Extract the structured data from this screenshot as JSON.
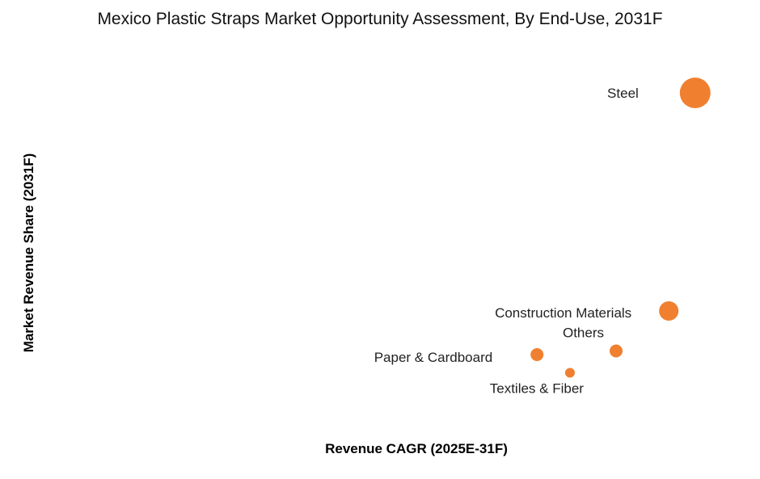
{
  "chart_data": {
    "type": "scatter",
    "title": "Mexico Plastic Straps Market Opportunity Assessment, By End-Use, 2031F",
    "xlabel": "Revenue CAGR (2025E-31F)",
    "ylabel": "Market Revenue Share (2031F)",
    "grid": false,
    "legend": "none",
    "marker_color": "#f08030",
    "xlim": [
      0,
      10
    ],
    "ylim": [
      0,
      10
    ],
    "series": [
      {
        "name": "End-Use",
        "points": [
          {
            "label": "Steel",
            "x": 9.2,
            "y": 9.0,
            "size": 5
          },
          {
            "label": "Construction Materials",
            "x": 8.8,
            "y": 3.0,
            "size": 3
          },
          {
            "label": "Others",
            "x": 8.0,
            "y": 1.9,
            "size": 2
          },
          {
            "label": "Paper & Cardboard",
            "x": 6.8,
            "y": 1.8,
            "size": 2
          },
          {
            "label": "Textiles & Fiber",
            "x": 7.3,
            "y": 1.3,
            "size": 1
          }
        ]
      }
    ]
  }
}
